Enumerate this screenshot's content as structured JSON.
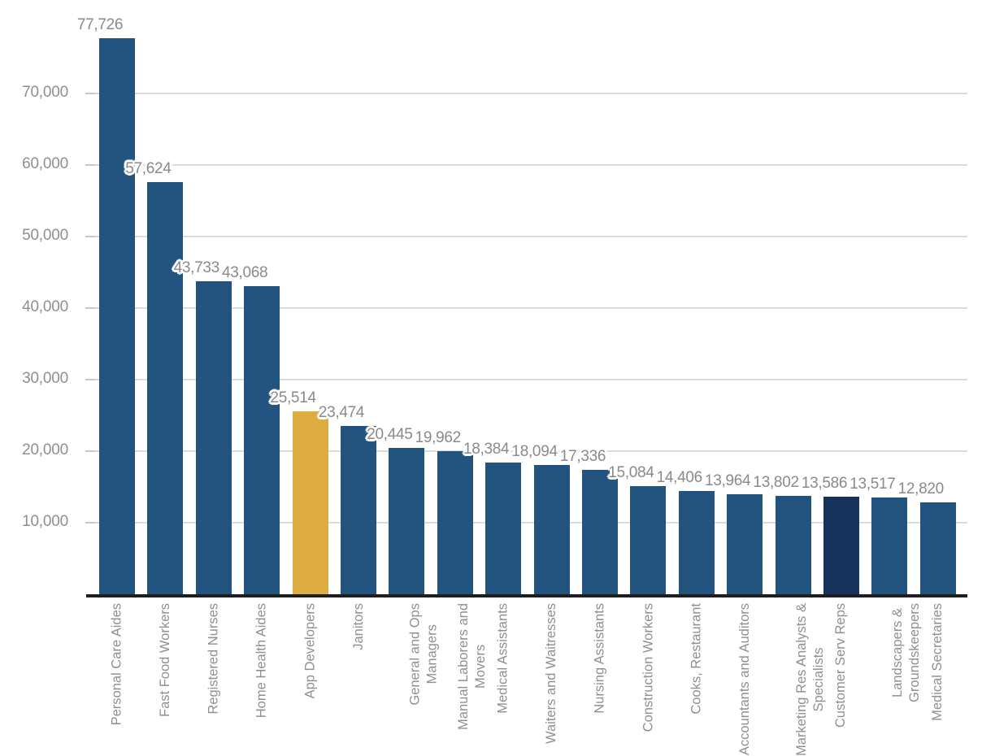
{
  "chart_data": {
    "type": "bar",
    "title": "",
    "xlabel": "",
    "ylabel": "",
    "legend": "none",
    "grid": true,
    "ylim": [
      0,
      78000
    ],
    "y_ticks": [
      {
        "value": 10000,
        "label": "10,000"
      },
      {
        "value": 20000,
        "label": "20,000"
      },
      {
        "value": 30000,
        "label": "30,000"
      },
      {
        "value": 40000,
        "label": "40,000"
      },
      {
        "value": 50000,
        "label": "50,000"
      },
      {
        "value": 60000,
        "label": "60,000"
      },
      {
        "value": 70000,
        "label": "70,000"
      }
    ],
    "categories": [
      "Personal Care Aides",
      "Fast Food Workers",
      "Registered Nurses",
      "Home Health Aides",
      "App Developers",
      "Janitors",
      "General and Ops Managers",
      "Manual Laborers and Movers",
      "Medical Assistants",
      "Waiters and Waitresses",
      "Nursing Assistants",
      "Construction Workers",
      "Cooks, Restaurant",
      "Accountants and Auditors",
      "Marketing Res Analysts & Specialists",
      "Customer Serv Reps",
      "Landscapers & Groundskeepers",
      "Medical Secretaries"
    ],
    "category_lines": [
      [
        "Personal Care Aides"
      ],
      [
        "Fast Food Workers"
      ],
      [
        "Registered Nurses"
      ],
      [
        "Home Health Aides"
      ],
      [
        "App Developers"
      ],
      [
        "Janitors"
      ],
      [
        "General and Ops",
        "Managers"
      ],
      [
        "Manual Laborers and",
        "Movers"
      ],
      [
        "Medical Assistants"
      ],
      [
        "Waiters and Waitresses"
      ],
      [
        "Nursing Assistants"
      ],
      [
        "Construction Workers"
      ],
      [
        "Cooks, Restaurant"
      ],
      [
        "Accountants and Auditors"
      ],
      [
        "Marketing Res Analysts &",
        "Specialists"
      ],
      [
        "Customer Serv Reps"
      ],
      [
        "Landscapers &",
        "Groundskeepers"
      ],
      [
        "Medical Secretaries"
      ]
    ],
    "values": [
      77726,
      57624,
      43733,
      43068,
      25514,
      23474,
      20445,
      19962,
      18384,
      18094,
      17336,
      15084,
      14406,
      13964,
      13802,
      13586,
      13517,
      12820
    ],
    "value_labels": [
      "77,726",
      "57,624",
      "43,733",
      "43,068",
      "25,514",
      "23,474",
      "20,445",
      "19,962",
      "18,384",
      "18,094",
      "17,336",
      "15,084",
      "14,406",
      "13,964",
      "13,802",
      "13,586",
      "13,517",
      "12,820"
    ],
    "highlight_index": 4,
    "highlighted_category": "App Developers",
    "dark_index": 15,
    "dark_category": "Customer Serv Reps",
    "colors": {
      "bar_default": "#235480",
      "bar_highlight": "#DEAD42",
      "bar_dark": "#16335C",
      "value_label": "#8A8A8A",
      "axis_label": "#8F8F8F",
      "gridline": "#DCDCDC",
      "tick": "#C9C9C9",
      "axis_line": "#1F1F1F",
      "background": "#FFFFFF"
    }
  }
}
